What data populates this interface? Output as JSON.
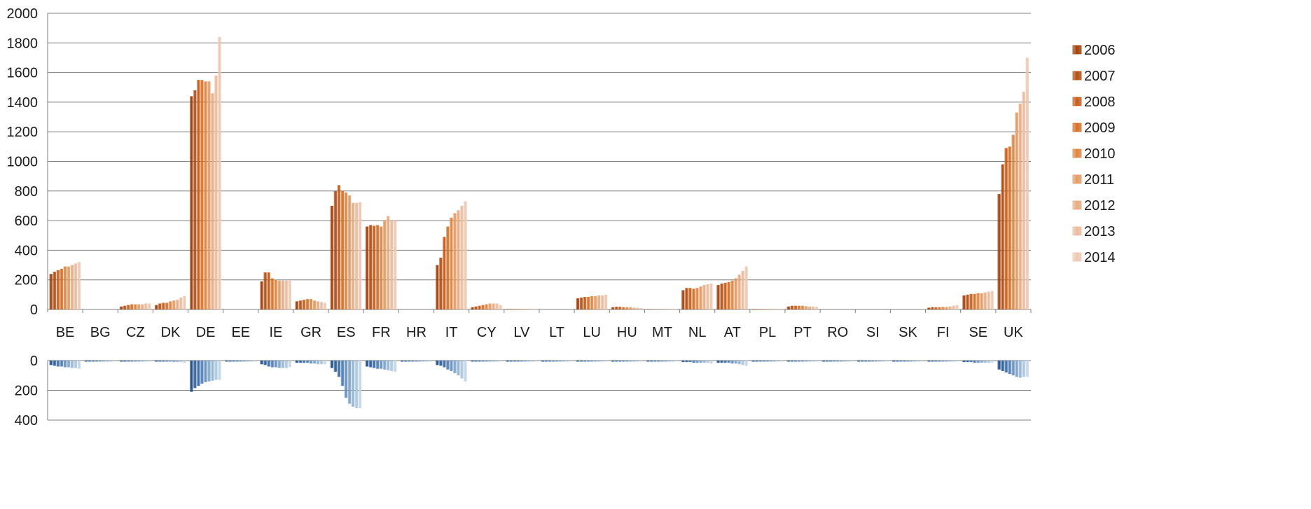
{
  "chart_data": {
    "type": "bar",
    "categories": [
      "BE",
      "BG",
      "CZ",
      "DK",
      "DE",
      "EE",
      "IE",
      "GR",
      "ES",
      "FR",
      "HR",
      "IT",
      "CY",
      "LV",
      "LT",
      "LU",
      "HU",
      "MT",
      "NL",
      "AT",
      "PL",
      "PT",
      "RO",
      "SI",
      "SK",
      "FI",
      "SE",
      "UK"
    ],
    "upper": {
      "ylim": [
        0,
        2000
      ],
      "yticks": [
        0,
        200,
        400,
        600,
        800,
        1000,
        1200,
        1400,
        1600,
        1800,
        2000
      ],
      "series": [
        {
          "name": "2006",
          "values": [
            240,
            0,
            20,
            30,
            1440,
            0,
            190,
            55,
            700,
            560,
            0,
            300,
            15,
            3,
            0,
            75,
            15,
            2,
            130,
            165,
            3,
            20,
            0,
            0,
            0,
            12,
            95,
            780
          ]
        },
        {
          "name": "2007",
          "values": [
            255,
            0,
            25,
            40,
            1480,
            0,
            250,
            60,
            800,
            570,
            0,
            350,
            20,
            3,
            0,
            80,
            18,
            2,
            145,
            175,
            3,
            25,
            0,
            0,
            0,
            15,
            100,
            980
          ]
        },
        {
          "name": "2008",
          "values": [
            265,
            0,
            30,
            45,
            1550,
            0,
            250,
            65,
            840,
            565,
            0,
            490,
            25,
            3,
            0,
            85,
            18,
            2,
            145,
            180,
            3,
            25,
            0,
            0,
            0,
            15,
            105,
            1090
          ]
        },
        {
          "name": "2009",
          "values": [
            275,
            0,
            35,
            45,
            1550,
            0,
            210,
            70,
            800,
            570,
            0,
            560,
            30,
            3,
            0,
            85,
            15,
            2,
            140,
            185,
            3,
            25,
            0,
            0,
            0,
            15,
            105,
            1100
          ]
        },
        {
          "name": "2010",
          "values": [
            290,
            0,
            35,
            55,
            1540,
            0,
            200,
            70,
            790,
            560,
            0,
            620,
            35,
            3,
            0,
            90,
            15,
            2,
            145,
            195,
            3,
            25,
            0,
            0,
            0,
            17,
            110,
            1180
          ]
        },
        {
          "name": "2011",
          "values": [
            290,
            0,
            35,
            60,
            1540,
            0,
            195,
            60,
            770,
            600,
            0,
            650,
            40,
            3,
            0,
            90,
            15,
            2,
            155,
            210,
            3,
            22,
            0,
            0,
            0,
            17,
            110,
            1330
          ]
        },
        {
          "name": "2012",
          "values": [
            300,
            0,
            35,
            65,
            1460,
            0,
            195,
            55,
            720,
            630,
            0,
            670,
            40,
            3,
            0,
            95,
            12,
            2,
            165,
            235,
            3,
            20,
            0,
            0,
            0,
            20,
            115,
            1390
          ]
        },
        {
          "name": "2013",
          "values": [
            310,
            0,
            40,
            80,
            1580,
            0,
            195,
            50,
            720,
            600,
            0,
            700,
            40,
            3,
            0,
            95,
            12,
            2,
            170,
            260,
            3,
            20,
            0,
            0,
            0,
            25,
            120,
            1470
          ]
        },
        {
          "name": "2014",
          "values": [
            320,
            0,
            40,
            90,
            1840,
            0,
            195,
            45,
            725,
            600,
            0,
            730,
            30,
            3,
            0,
            100,
            10,
            2,
            175,
            290,
            3,
            18,
            0,
            0,
            0,
            30,
            125,
            1700
          ]
        }
      ]
    },
    "lower": {
      "ylim": [
        0,
        400
      ],
      "yticks": [
        0,
        200,
        400
      ],
      "series": [
        {
          "name": "2006",
          "values": [
            30,
            0,
            5,
            5,
            210,
            0,
            25,
            15,
            50,
            40,
            0,
            30,
            5,
            0,
            0,
            5,
            0,
            0,
            10,
            15,
            0,
            0,
            0,
            0,
            0,
            5,
            10,
            60
          ]
        },
        {
          "name": "2007",
          "values": [
            35,
            0,
            5,
            5,
            185,
            0,
            30,
            15,
            75,
            45,
            0,
            35,
            5,
            0,
            0,
            5,
            0,
            0,
            10,
            15,
            0,
            5,
            0,
            0,
            0,
            5,
            10,
            70
          ]
        },
        {
          "name": "2008",
          "values": [
            40,
            0,
            5,
            5,
            170,
            0,
            40,
            15,
            110,
            50,
            0,
            45,
            5,
            0,
            0,
            5,
            0,
            0,
            10,
            15,
            0,
            5,
            0,
            0,
            0,
            5,
            10,
            80
          ]
        },
        {
          "name": "2009",
          "values": [
            40,
            0,
            5,
            5,
            155,
            0,
            45,
            15,
            170,
            55,
            0,
            60,
            5,
            0,
            0,
            5,
            0,
            0,
            15,
            15,
            0,
            5,
            0,
            0,
            0,
            5,
            15,
            90
          ]
        },
        {
          "name": "2010",
          "values": [
            45,
            0,
            5,
            5,
            145,
            0,
            45,
            20,
            250,
            55,
            0,
            70,
            5,
            0,
            0,
            5,
            0,
            0,
            15,
            20,
            0,
            5,
            0,
            0,
            0,
            5,
            15,
            100
          ]
        },
        {
          "name": "2011",
          "values": [
            45,
            0,
            5,
            10,
            140,
            0,
            50,
            20,
            290,
            60,
            0,
            85,
            5,
            0,
            0,
            5,
            0,
            0,
            15,
            20,
            0,
            5,
            0,
            0,
            0,
            5,
            15,
            110
          ]
        },
        {
          "name": "2012",
          "values": [
            50,
            0,
            5,
            10,
            135,
            0,
            50,
            25,
            310,
            65,
            0,
            100,
            5,
            0,
            0,
            5,
            0,
            0,
            15,
            25,
            0,
            5,
            0,
            0,
            0,
            5,
            15,
            115
          ]
        },
        {
          "name": "2013",
          "values": [
            50,
            0,
            5,
            10,
            130,
            0,
            50,
            25,
            320,
            70,
            0,
            120,
            5,
            0,
            0,
            5,
            0,
            0,
            15,
            30,
            0,
            5,
            0,
            0,
            0,
            5,
            15,
            110
          ]
        },
        {
          "name": "2014",
          "values": [
            55,
            0,
            5,
            15,
            130,
            0,
            45,
            25,
            320,
            75,
            0,
            140,
            5,
            0,
            0,
            5,
            0,
            0,
            20,
            35,
            0,
            5,
            0,
            0,
            0,
            5,
            15,
            110
          ]
        }
      ]
    },
    "legend": {
      "position": "right",
      "entries": [
        "2006",
        "2007",
        "2008",
        "2009",
        "2010",
        "2011",
        "2012",
        "2013",
        "2014"
      ]
    },
    "grid": true,
    "colors": {
      "upper": [
        "#a0400b",
        "#b24e12",
        "#c45c19",
        "#d46f28",
        "#de8540",
        "#e39a63",
        "#e6ab83",
        "#e9bb9e",
        "#ecc8b2"
      ],
      "lower": [
        "#1f4e8a",
        "#2c5d98",
        "#3b6ca6",
        "#4f7cb2",
        "#6690be",
        "#7da3c9",
        "#95b5d3",
        "#acc6dd",
        "#c2d6e6"
      ],
      "grid": "#7f7f7f",
      "axis": "#7f7f7f"
    }
  }
}
